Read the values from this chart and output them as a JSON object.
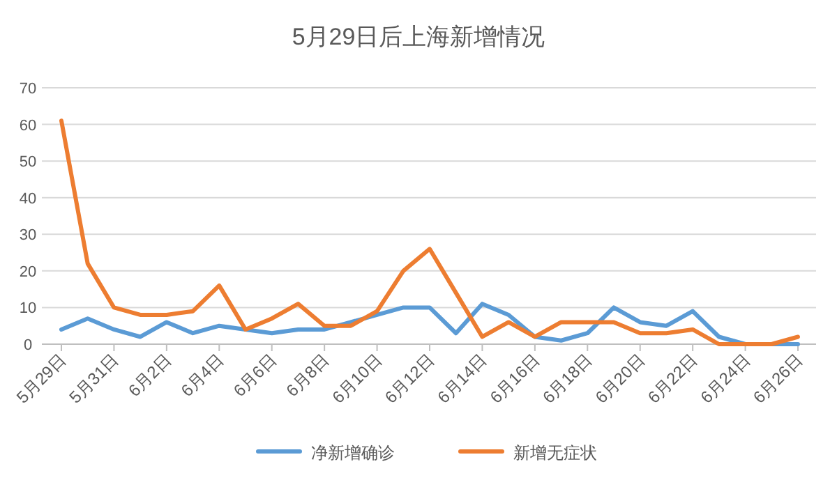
{
  "chart_data": {
    "type": "line",
    "title": "5月29日后上海新增情况",
    "categories": [
      "5月29日",
      null,
      "5月31日",
      null,
      "6月2日",
      null,
      "6月4日",
      null,
      "6月6日",
      null,
      "6月8日",
      null,
      "6月10日",
      null,
      "6月12日",
      null,
      "6月14日",
      null,
      "6月16日",
      null,
      "6月18日",
      null,
      "6月20日",
      null,
      "6月22日",
      null,
      "6月24日",
      null,
      "6月26日"
    ],
    "series": [
      {
        "name": "净新增确诊",
        "color": "#5b9bd5",
        "values": [
          4,
          7,
          4,
          2,
          6,
          3,
          5,
          4,
          3,
          4,
          4,
          6,
          8,
          10,
          10,
          3,
          11,
          8,
          2,
          1,
          3,
          10,
          6,
          5,
          9,
          2,
          0,
          0,
          0
        ]
      },
      {
        "name": "新增无症状",
        "color": "#ed7d31",
        "values": [
          61,
          22,
          10,
          8,
          8,
          9,
          16,
          4,
          7,
          11,
          5,
          5,
          9,
          20,
          26,
          14,
          2,
          6,
          2,
          6,
          6,
          6,
          3,
          3,
          4,
          0,
          0,
          0,
          2
        ]
      }
    ],
    "ylim": [
      0,
      70
    ],
    "yticks": [
      0,
      10,
      20,
      30,
      40,
      50,
      60,
      70
    ],
    "grid": "y",
    "legend": "bottom",
    "marker": "none",
    "line_style": "solid"
  }
}
